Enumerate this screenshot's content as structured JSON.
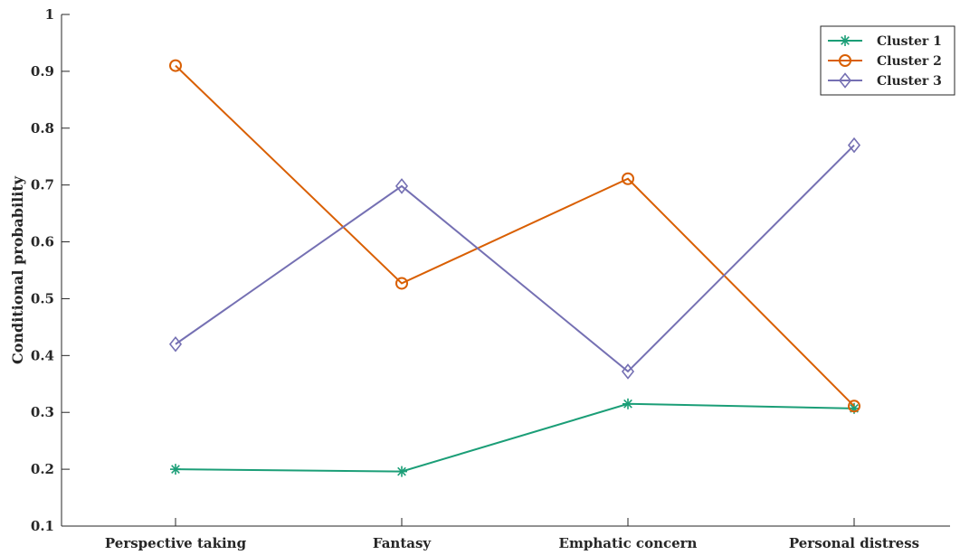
{
  "chart_data": {
    "type": "line",
    "categories": [
      "Perspective taking",
      "Fantasy",
      "Emphatic concern",
      "Personal distress"
    ],
    "ylabel": "Conditional probability",
    "xlabel": "",
    "title": "",
    "ylim": [
      0.1,
      1
    ],
    "yticks": [
      "0.1",
      "0.2",
      "0.3",
      "0.4",
      "0.5",
      "0.6",
      "0.7",
      "0.8",
      "0.9",
      "1"
    ],
    "legend_position": "top-right",
    "grid": false,
    "series": [
      {
        "name": "Cluster 1",
        "values": [
          0.2,
          0.196,
          0.315,
          0.307
        ],
        "color": "#1b9e77",
        "marker": "asterisk"
      },
      {
        "name": "Cluster 2",
        "values": [
          0.91,
          0.527,
          0.711,
          0.311
        ],
        "color": "#d95f02",
        "marker": "circle"
      },
      {
        "name": "Cluster 3",
        "values": [
          0.42,
          0.698,
          0.372,
          0.77
        ],
        "color": "#7570b3",
        "marker": "diamond"
      }
    ]
  }
}
